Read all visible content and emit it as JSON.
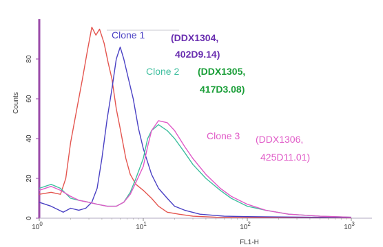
{
  "chart_data": {
    "type": "line",
    "title": "",
    "xlabel": "FL1-H",
    "ylabel": "Counts",
    "x_scale": "log",
    "xlim": [
      1,
      1000
    ],
    "ylim": [
      0,
      100
    ],
    "x_ticks": [
      {
        "label": "10",
        "sup": "0",
        "value": 1
      },
      {
        "label": "10",
        "sup": "1",
        "value": 10
      },
      {
        "label": "10",
        "sup": "2",
        "value": 100
      },
      {
        "label": "10",
        "sup": "3",
        "value": 1000
      }
    ],
    "y_ticks": [
      {
        "label": "0",
        "value": 0
      },
      {
        "label": "20",
        "value": 20
      },
      {
        "label": "40",
        "value": 40
      },
      {
        "label": "60",
        "value": 60
      },
      {
        "label": "80",
        "value": 80
      }
    ],
    "grid": false,
    "series": [
      {
        "name": "",
        "color": "#e4554f",
        "points": [
          [
            1,
            12
          ],
          [
            1.3,
            13
          ],
          [
            1.6,
            12
          ],
          [
            1.8,
            20
          ],
          [
            2.0,
            38
          ],
          [
            2.3,
            55
          ],
          [
            2.6,
            70
          ],
          [
            2.9,
            84
          ],
          [
            3.2,
            96
          ],
          [
            3.5,
            92
          ],
          [
            3.8,
            95
          ],
          [
            4.2,
            88
          ],
          [
            4.6,
            78
          ],
          [
            5.0,
            70
          ],
          [
            5.5,
            55
          ],
          [
            6.0,
            45
          ],
          [
            6.8,
            30
          ],
          [
            7.5,
            22
          ],
          [
            8.5,
            17
          ],
          [
            10,
            14
          ],
          [
            12,
            10
          ],
          [
            14,
            6
          ],
          [
            17,
            3
          ],
          [
            22,
            2
          ],
          [
            30,
            1
          ],
          [
            50,
            0.5
          ],
          [
            100,
            0.3
          ],
          [
            1000,
            0.2
          ]
        ]
      },
      {
        "name": "Clone 1",
        "color": "#4a41c4",
        "points": [
          [
            1,
            8
          ],
          [
            1.3,
            6
          ],
          [
            1.7,
            3
          ],
          [
            2.0,
            5
          ],
          [
            2.4,
            4
          ],
          [
            2.8,
            5
          ],
          [
            3.2,
            8
          ],
          [
            3.6,
            15
          ],
          [
            4.0,
            30
          ],
          [
            4.5,
            50
          ],
          [
            5.0,
            65
          ],
          [
            5.5,
            80
          ],
          [
            6.0,
            86
          ],
          [
            6.5,
            80
          ],
          [
            7.2,
            70
          ],
          [
            8.0,
            60
          ],
          [
            9.0,
            45
          ],
          [
            10,
            35
          ],
          [
            12,
            22
          ],
          [
            14,
            15
          ],
          [
            17,
            10
          ],
          [
            20,
            6
          ],
          [
            25,
            4
          ],
          [
            35,
            2
          ],
          [
            60,
            1
          ],
          [
            100,
            0.8
          ],
          [
            1000,
            0.3
          ]
        ]
      },
      {
        "name": "Clone 2",
        "color": "#3fbf9f",
        "points": [
          [
            1,
            15
          ],
          [
            1.3,
            17
          ],
          [
            1.6,
            15
          ],
          [
            2.0,
            10
          ],
          [
            2.4,
            9
          ],
          [
            3.0,
            8
          ],
          [
            3.6,
            7
          ],
          [
            4.5,
            6
          ],
          [
            5.5,
            6
          ],
          [
            6.5,
            8
          ],
          [
            7.5,
            13
          ],
          [
            8.5,
            20
          ],
          [
            10,
            30
          ],
          [
            11,
            40
          ],
          [
            12,
            44
          ],
          [
            14,
            47
          ],
          [
            17,
            44
          ],
          [
            20,
            40
          ],
          [
            25,
            33
          ],
          [
            30,
            27
          ],
          [
            40,
            20
          ],
          [
            55,
            14
          ],
          [
            70,
            10
          ],
          [
            100,
            6
          ],
          [
            150,
            4
          ],
          [
            250,
            2
          ],
          [
            500,
            1
          ],
          [
            1000,
            0.5
          ]
        ]
      },
      {
        "name": "Clone 3",
        "color": "#e05ac7",
        "points": [
          [
            1,
            14
          ],
          [
            1.3,
            16
          ],
          [
            1.6,
            14
          ],
          [
            2.0,
            11
          ],
          [
            2.4,
            9
          ],
          [
            3.0,
            8
          ],
          [
            3.6,
            7
          ],
          [
            4.5,
            6
          ],
          [
            5.5,
            6
          ],
          [
            6.5,
            8
          ],
          [
            7.5,
            12
          ],
          [
            8.5,
            18
          ],
          [
            10,
            26
          ],
          [
            11,
            36
          ],
          [
            12,
            44
          ],
          [
            14,
            49
          ],
          [
            17,
            48
          ],
          [
            20,
            44
          ],
          [
            25,
            36
          ],
          [
            30,
            30
          ],
          [
            40,
            22
          ],
          [
            55,
            15
          ],
          [
            70,
            11
          ],
          [
            100,
            7
          ],
          [
            150,
            4
          ],
          [
            250,
            2
          ],
          [
            500,
            1
          ],
          [
            1000,
            0.5
          ]
        ]
      }
    ],
    "annotations": [
      {
        "label": "Clone 1",
        "code": "(DDX1304,",
        "code2": "402D9.14)",
        "label_color": "#4a41c4",
        "code_color": "#6a2fb0"
      },
      {
        "label": "Clone 2",
        "code": "(DDX1305,",
        "code2": "417D3.08)",
        "label_color": "#3fbf9f",
        "code_color": "#1a9e38"
      },
      {
        "label": "Clone 3",
        "code": "(DDX1306,",
        "code2": "425D11.01)",
        "label_color": "#e05ac7",
        "code_color": "#e05ac7"
      }
    ],
    "colors": {
      "axis": "#9a4aa8"
    }
  }
}
